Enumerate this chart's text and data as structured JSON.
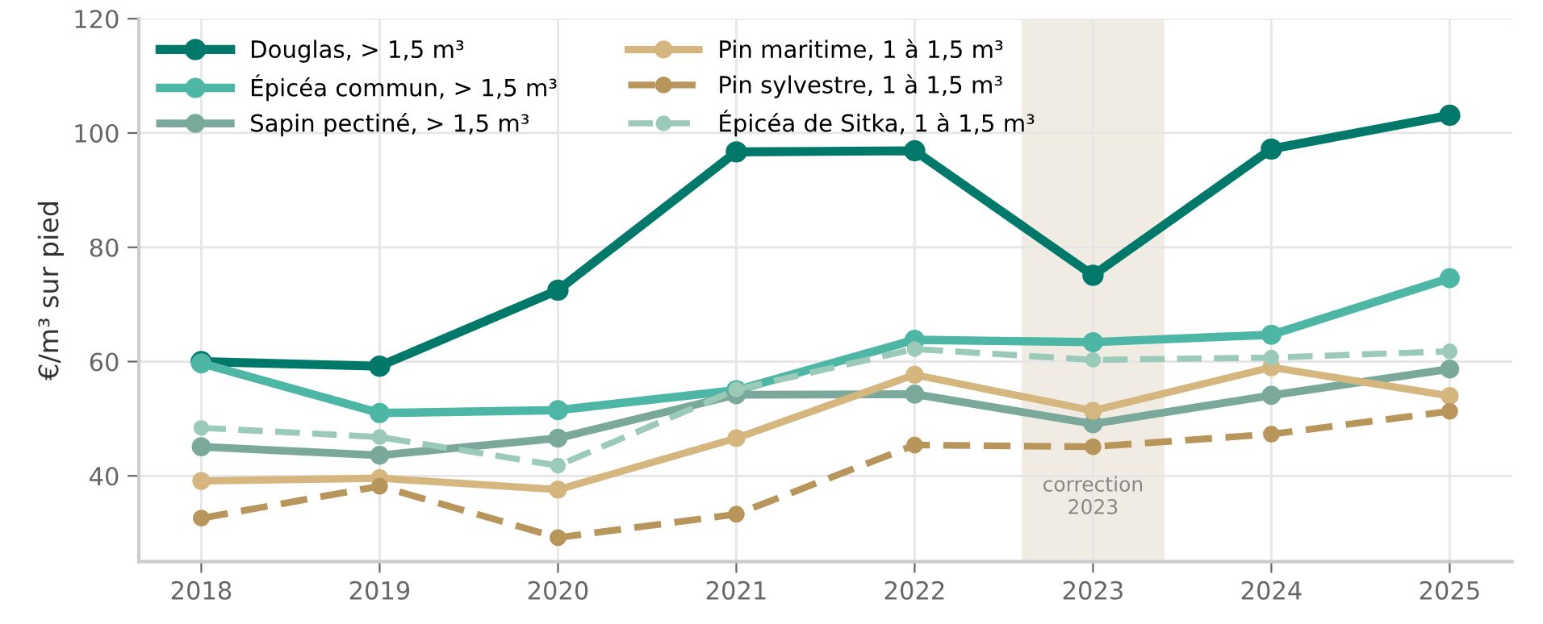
{
  "chart_data": {
    "type": "line",
    "ylabel": "€/m³ sur pied",
    "x": [
      2018,
      2019,
      2020,
      2021,
      2022,
      2023,
      2024,
      2025
    ],
    "xlim": [
      2017.65,
      2025.35
    ],
    "xticks": [
      2018,
      2019,
      2020,
      2021,
      2022,
      2023,
      2024,
      2025
    ],
    "ylim": [
      25,
      120
    ],
    "yticks": [
      40,
      60,
      80,
      100,
      120
    ],
    "grid": true,
    "legend": "top left",
    "marker": "circle",
    "series": [
      {
        "name": "Douglas, > 1,5 m³",
        "color": "#00796b",
        "line_style": "solid",
        "values": [
          60.0,
          59.2,
          72.5,
          96.7,
          96.9,
          75.1,
          97.2,
          103.1
        ]
      },
      {
        "name": "Épicéa commun, > 1,5 m³",
        "color": "#4db6a4",
        "line_style": "solid",
        "values": [
          59.7,
          51.0,
          51.5,
          55.0,
          63.8,
          63.4,
          64.7,
          74.6
        ]
      },
      {
        "name": "Sapin pectiné, > 1,5 m³",
        "color": "#7aa99c",
        "line_style": "solid",
        "values": [
          45.1,
          43.6,
          46.6,
          54.2,
          54.3,
          49.1,
          54.1,
          58.7
        ]
      },
      {
        "name": "Pin maritime, 1 à 1,5 m³",
        "color": "#d4b67e",
        "line_style": "solid",
        "values": [
          39.1,
          39.6,
          37.6,
          46.6,
          57.7,
          51.4,
          59.0,
          54.0
        ]
      },
      {
        "name": "Pin sylvestre, 1 à 1,5 m³",
        "color": "#b8955a",
        "line_style": "dashed",
        "values": [
          32.6,
          38.2,
          29.2,
          33.3,
          45.4,
          45.1,
          47.3,
          51.3
        ]
      },
      {
        "name": "Épicéa de Sitka, 1 à 1,5 m³",
        "color": "#9ccab9",
        "line_style": "dashed",
        "values": [
          48.4,
          46.8,
          41.8,
          55.1,
          62.2,
          60.3,
          60.7,
          61.8
        ]
      }
    ],
    "bands": [
      {
        "axis": "x",
        "from": 2022.6,
        "to": 2023.4,
        "label": "correction\n2023",
        "color": "#f1ece3"
      }
    ]
  }
}
